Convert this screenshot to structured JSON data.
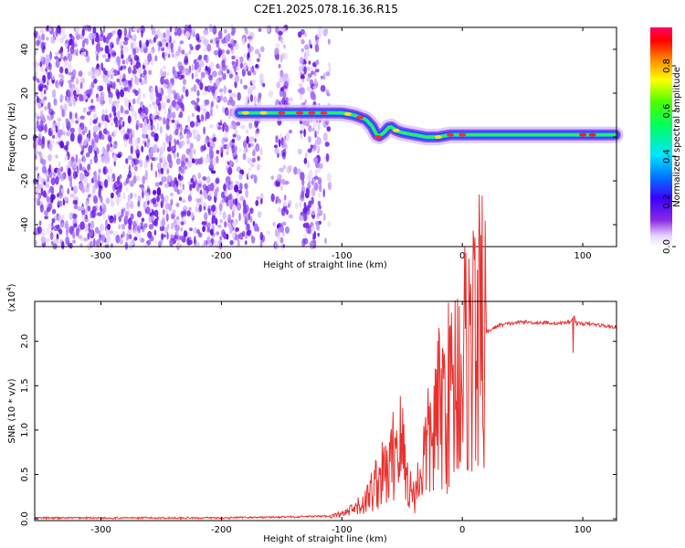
{
  "title": "C2E1.2025.078.16.36.R15",
  "chart_data": [
    {
      "type": "heatmap",
      "xlabel": "Height of straight line (km)",
      "ylabel": "Frequency (Hz)",
      "xlim": [
        -355,
        128
      ],
      "ylim": [
        -50,
        50
      ],
      "xticks": [
        -300,
        -200,
        -100,
        0,
        100
      ],
      "yticks": [
        -40,
        -20,
        0,
        20,
        40
      ],
      "colorbar": {
        "label": "Normalized spectral amplitude",
        "range": [
          0.0,
          0.97
        ],
        "ticks": [
          "0.0",
          "0.2",
          "0.4",
          "0.6",
          "0.8"
        ],
        "colormap": "rainbow (white-purple-blue-cyan-green-yellow-red-magenta)"
      },
      "ridge": {
        "x": [
          -185,
          -160,
          -140,
          -120,
          -100,
          -90,
          -80,
          -75,
          -70,
          -65,
          -60,
          -55,
          -50,
          -40,
          -30,
          -20,
          -10,
          0,
          20,
          50,
          80,
          100,
          128
        ],
        "y": [
          11,
          11,
          11,
          11,
          11,
          10,
          8,
          5,
          0,
          2,
          5,
          3,
          2,
          1,
          0,
          0,
          1,
          1,
          1,
          1,
          1,
          1,
          1
        ]
      },
      "noise_region_x": [
        -355,
        -110
      ],
      "grid": false
    },
    {
      "type": "line",
      "xlabel": "Height of straight line (km)",
      "ylabel": "SNR (10 * v/v)",
      "scale_note": "(x10",
      "scale_exponent": "4",
      "xlim": [
        -355,
        128
      ],
      "ylim": [
        -0.02,
        2.45
      ],
      "xticks": [
        -300,
        -200,
        -100,
        0,
        100
      ],
      "yticks": [
        0.0,
        0.5,
        1.0,
        1.5,
        2.0
      ],
      "series": [
        {
          "color": "#e8312e",
          "x": [
            -355,
            -300,
            -250,
            -200,
            -150,
            -110,
            -100,
            -90,
            -80,
            -70,
            -60,
            -55,
            -50,
            -45,
            -40,
            -35,
            -30,
            -25,
            -20,
            -15,
            -10,
            -5,
            0,
            5,
            10,
            15,
            20,
            30,
            40,
            50,
            60,
            70,
            80,
            90,
            92,
            95,
            100,
            110,
            115,
            120,
            128
          ],
          "y": [
            0.01,
            0.01,
            0.01,
            0.01,
            0.02,
            0.03,
            0.05,
            0.1,
            0.2,
            0.45,
            0.55,
            0.9,
            0.8,
            0.4,
            0.25,
            0.5,
            0.8,
            0.9,
            1.2,
            1.35,
            1.4,
            1.6,
            1.75,
            1.9,
            2.0,
            2.05,
            2.1,
            2.18,
            2.2,
            2.22,
            2.21,
            2.21,
            2.2,
            2.22,
            2.3,
            2.2,
            2.2,
            2.19,
            2.18,
            2.17,
            2.16
          ]
        }
      ],
      "grid": false
    }
  ]
}
